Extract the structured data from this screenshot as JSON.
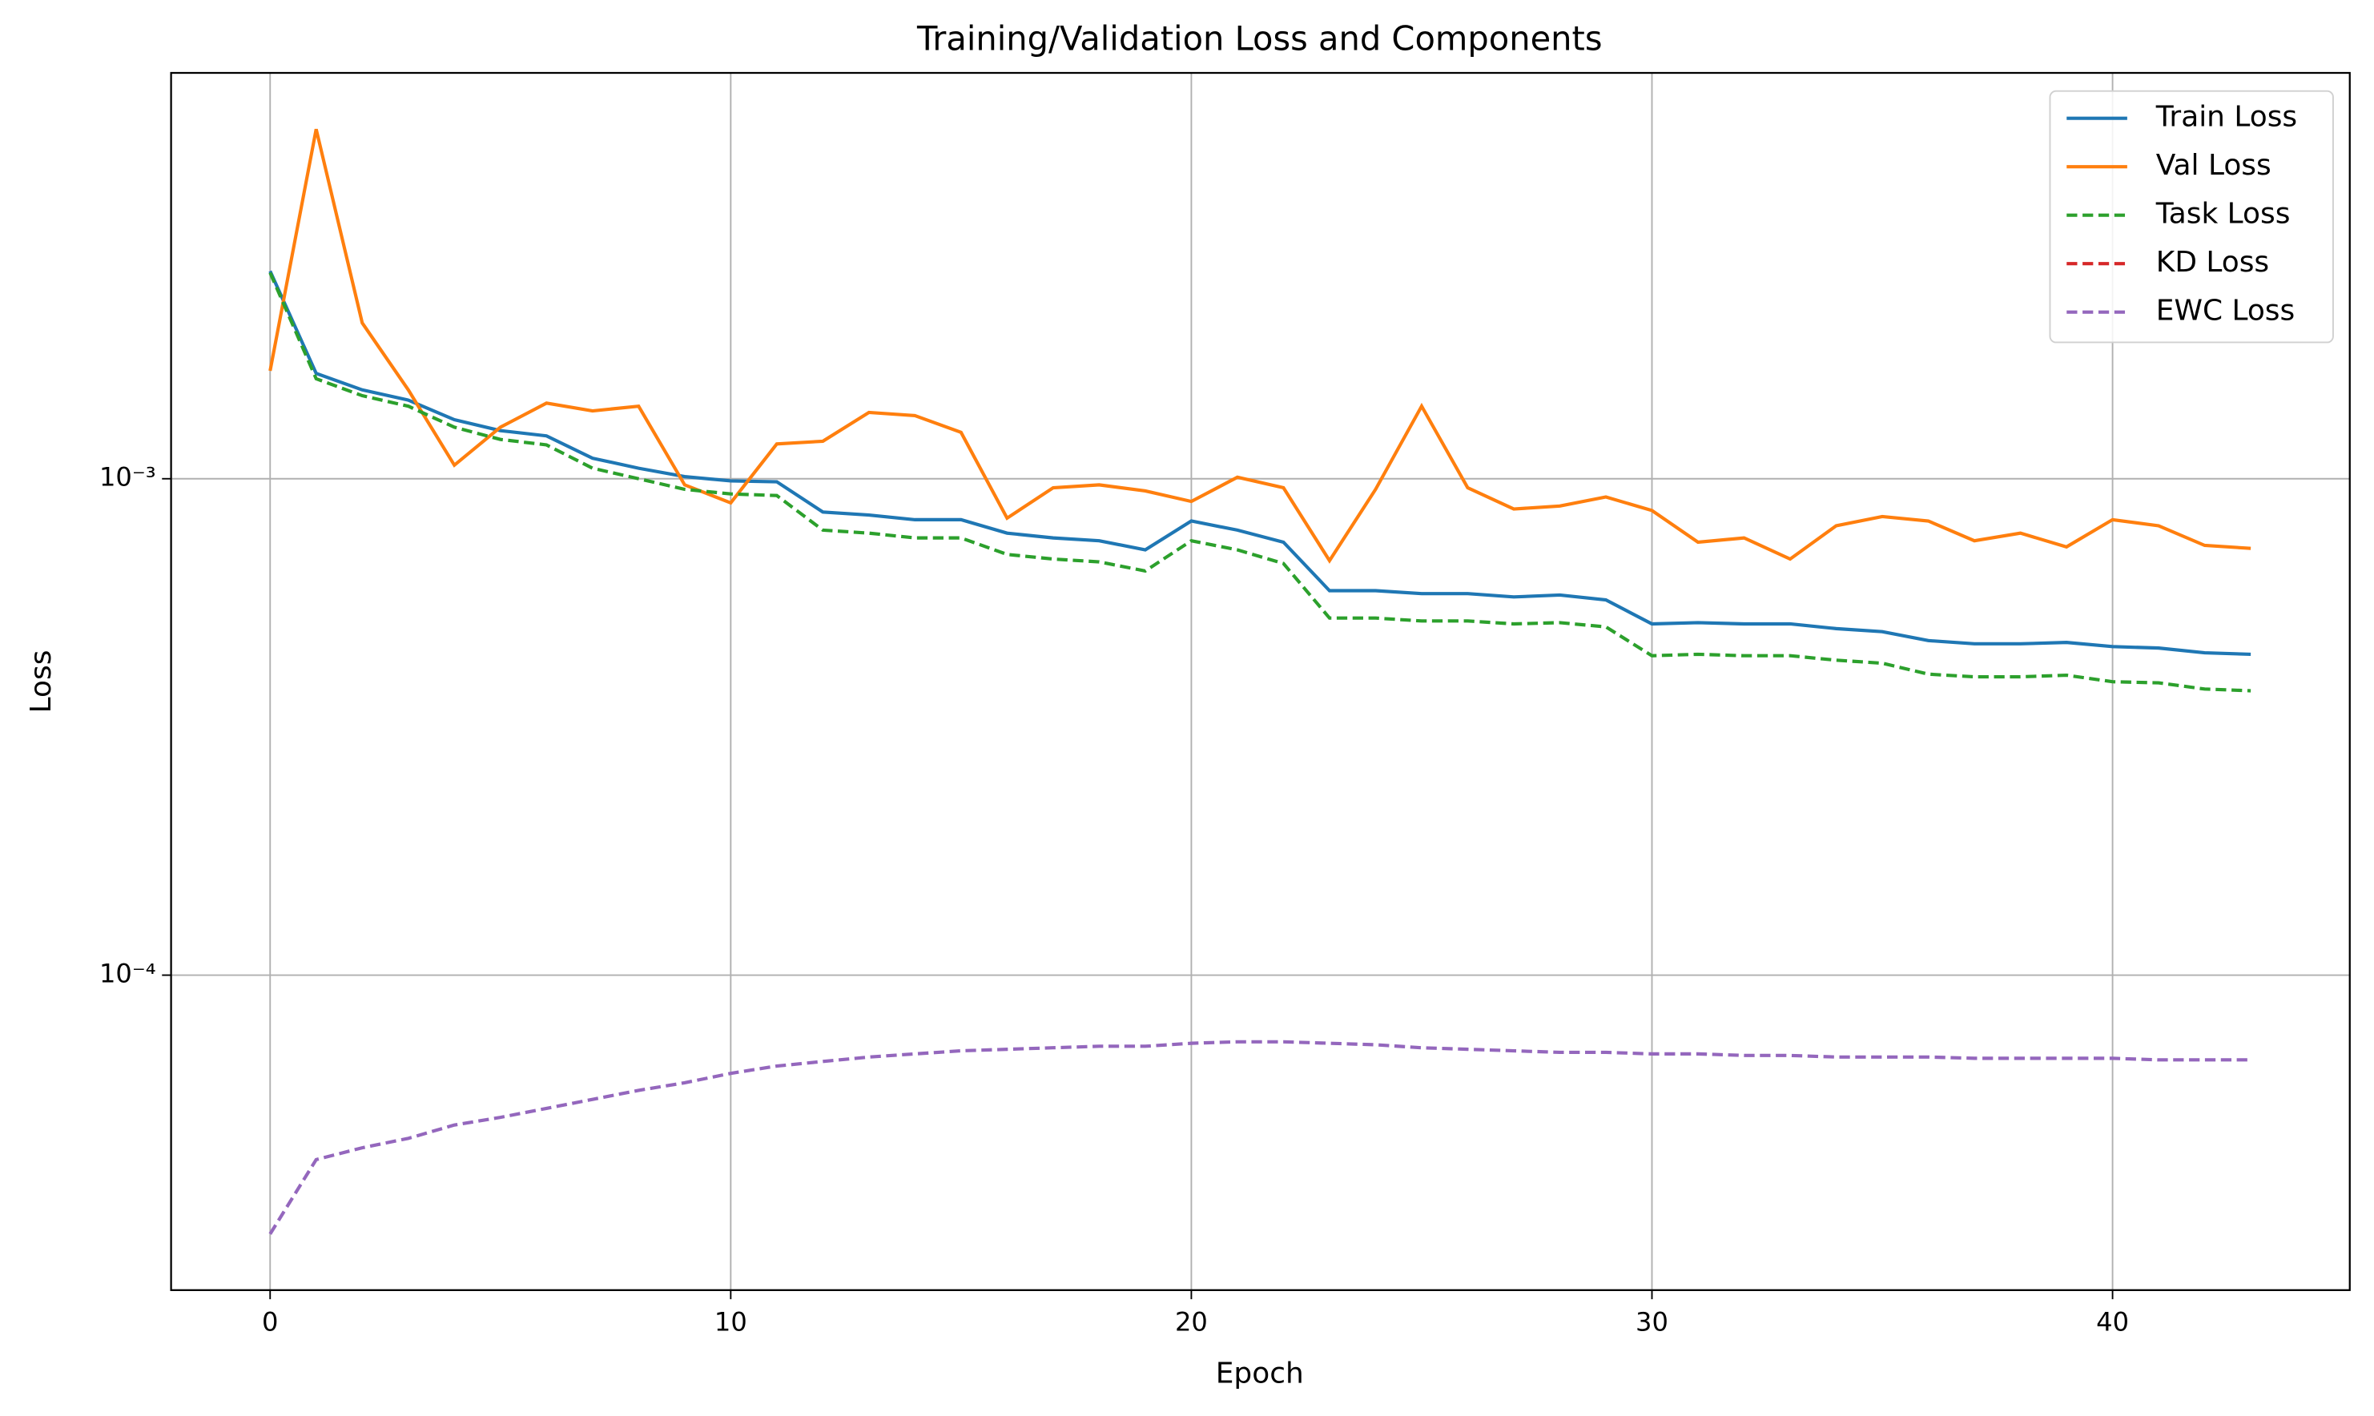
{
  "chart_data": {
    "type": "line",
    "title": "Training/Validation Loss and Components",
    "x_label": "Epoch",
    "y_label": "Loss",
    "x": [
      0,
      1,
      2,
      3,
      4,
      5,
      6,
      7,
      8,
      9,
      10,
      11,
      12,
      13,
      14,
      15,
      16,
      17,
      18,
      19,
      20,
      21,
      22,
      23,
      24,
      25,
      26,
      27,
      28,
      29,
      30,
      31,
      32,
      33,
      34,
      35,
      36,
      37,
      38,
      39,
      40,
      41,
      42,
      43
    ],
    "xlim": [
      -2.15,
      45.15
    ],
    "xticks": [
      0,
      10,
      20,
      30,
      40
    ],
    "ylim": [
      2.32e-05,
      0.00657
    ],
    "yticks": [
      {
        "value": 0.0001,
        "label": "10⁻⁴"
      },
      {
        "value": 0.001,
        "label": "10⁻³"
      }
    ],
    "log_y": true,
    "grid": true,
    "legend": "upper right",
    "series": [
      {
        "name": "Train Loss",
        "color": "#1f77b4",
        "linestyle": "solid",
        "values": [
          0.00262,
          0.00163,
          0.00151,
          0.00144,
          0.001315,
          0.00125,
          0.00122,
          0.0011,
          0.00105,
          0.00101,
          0.00099,
          0.000986,
          0.000857,
          0.000845,
          0.000827,
          0.000827,
          0.000777,
          0.00076,
          0.00075,
          0.000719,
          0.000822,
          0.000788,
          0.000745,
          0.000595,
          0.000595,
          0.000587,
          0.000587,
          0.000578,
          0.000583,
          0.00057,
          0.00051,
          0.000513,
          0.00051,
          0.00051,
          0.000499,
          0.000492,
          0.000472,
          0.000465,
          0.000465,
          0.000468,
          0.000459,
          0.000456,
          0.000446,
          0.000443
        ]
      },
      {
        "name": "Val Loss",
        "color": "#ff7f0e",
        "linestyle": "solid",
        "values": [
          0.00165,
          0.00506,
          0.00206,
          0.00151,
          0.001065,
          0.00127,
          0.00142,
          0.00137,
          0.0014,
          0.000972,
          0.000894,
          0.001175,
          0.00119,
          0.00136,
          0.00134,
          0.00124,
          0.000833,
          0.000959,
          0.000972,
          0.000945,
          0.0009,
          0.001007,
          0.000959,
          0.000684,
          0.000952,
          0.0014,
          0.000959,
          0.000869,
          0.000881,
          0.000919,
          0.000863,
          0.000745,
          0.00076,
          0.000689,
          0.000804,
          0.000839,
          0.000822,
          0.00075,
          0.000777,
          0.000729,
          0.000827,
          0.000804,
          0.000734,
          0.000724
        ]
      },
      {
        "name": "Task Loss",
        "color": "#2ca02c",
        "linestyle": "dashed",
        "values": [
          0.0026,
          0.00159,
          0.00147,
          0.0014,
          0.00127,
          0.0012,
          0.00117,
          0.00105,
          0.001,
          0.000952,
          0.000932,
          0.000925,
          0.000788,
          0.000777,
          0.00076,
          0.00076,
          0.000704,
          0.000689,
          0.00068,
          0.000652,
          0.00075,
          0.000719,
          0.000675,
          0.000524,
          0.000524,
          0.000517,
          0.000517,
          0.00051,
          0.000513,
          0.000503,
          0.00044,
          0.000443,
          0.00044,
          0.00044,
          0.000431,
          0.000425,
          0.000404,
          0.000399,
          0.000399,
          0.000402,
          0.00039,
          0.000388,
          0.000377,
          0.000374
        ]
      },
      {
        "name": "KD Loss",
        "color": "#d62728",
        "linestyle": "dashed",
        "values": [
          null,
          null,
          null,
          null,
          null,
          null,
          null,
          null,
          null,
          null,
          null,
          null,
          null,
          null,
          null,
          null,
          null,
          null,
          null,
          null,
          null,
          null,
          null,
          null,
          null,
          null,
          null,
          null,
          null,
          null,
          null,
          null,
          null,
          null,
          null,
          null,
          null,
          null,
          null,
          null,
          null,
          null,
          null,
          null
        ]
      },
      {
        "name": "EWC Loss",
        "color": "#9467bd",
        "linestyle": "dashed",
        "values": [
          3.01e-05,
          4.25e-05,
          4.49e-05,
          4.69e-05,
          4.99e-05,
          5.17e-05,
          5.39e-05,
          5.62e-05,
          5.86e-05,
          6.07e-05,
          6.34e-05,
          6.56e-05,
          6.7e-05,
          6.84e-05,
          6.94e-05,
          7.04e-05,
          7.09e-05,
          7.14e-05,
          7.19e-05,
          7.19e-05,
          7.29e-05,
          7.34e-05,
          7.34e-05,
          7.29e-05,
          7.24e-05,
          7.14e-05,
          7.09e-05,
          7.04e-05,
          6.99e-05,
          6.99e-05,
          6.94e-05,
          6.94e-05,
          6.89e-05,
          6.89e-05,
          6.84e-05,
          6.84e-05,
          6.84e-05,
          6.8e-05,
          6.8e-05,
          6.8e-05,
          6.8e-05,
          6.75e-05,
          6.75e-05,
          6.75e-05
        ]
      }
    ]
  }
}
